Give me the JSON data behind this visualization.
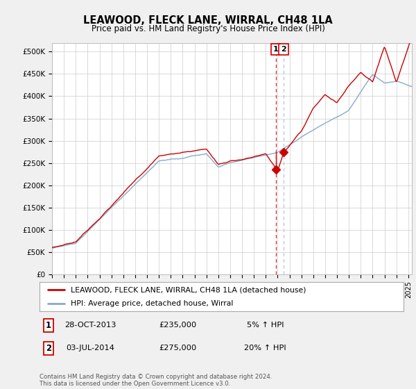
{
  "title": "LEAWOOD, FLECK LANE, WIRRAL, CH48 1LA",
  "subtitle": "Price paid vs. HM Land Registry's House Price Index (HPI)",
  "ylabel_ticks": [
    "£0",
    "£50K",
    "£100K",
    "£150K",
    "£200K",
    "£250K",
    "£300K",
    "£350K",
    "£400K",
    "£450K",
    "£500K"
  ],
  "ytick_vals": [
    0,
    50000,
    100000,
    150000,
    200000,
    250000,
    300000,
    350000,
    400000,
    450000,
    500000
  ],
  "ylim": [
    0,
    520000
  ],
  "xlim_start": 1995.0,
  "xlim_end": 2025.3,
  "purchase1_date": 2013.83,
  "purchase1_price": 235000,
  "purchase2_date": 2014.5,
  "purchase2_price": 275000,
  "line_color_red": "#cc0000",
  "line_color_blue": "#88aacc",
  "dashed_color_red": "#cc0000",
  "dashed_color_blue": "#aabbdd",
  "legend_label_red": "LEAWOOD, FLECK LANE, WIRRAL, CH48 1LA (detached house)",
  "legend_label_blue": "HPI: Average price, detached house, Wirral",
  "table_row1": [
    "1",
    "28-OCT-2013",
    "£235,000",
    "5% ↑ HPI"
  ],
  "table_row2": [
    "2",
    "03-JUL-2014",
    "£275,000",
    "20% ↑ HPI"
  ],
  "footer": "Contains HM Land Registry data © Crown copyright and database right 2024.\nThis data is licensed under the Open Government Licence v3.0.",
  "bg_color": "#f0f0f0",
  "plot_bg_color": "#ffffff"
}
